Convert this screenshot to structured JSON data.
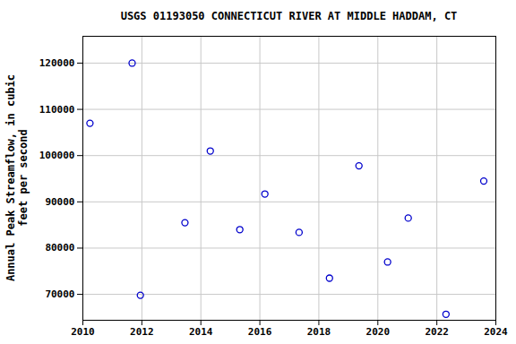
{
  "chart_data": {
    "type": "scatter",
    "title": "USGS 01193050 CONNECTICUT RIVER AT MIDDLE HADDAM, CT",
    "y_label": "Annual Peak Streamflow, in cubic feet per second",
    "x": [
      2010.24,
      2011.67,
      2011.95,
      2013.46,
      2014.32,
      2015.32,
      2016.17,
      2017.33,
      2018.36,
      2019.36,
      2020.33,
      2021.03,
      2022.31,
      2023.59
    ],
    "values": [
      107000,
      120000,
      69800,
      85500,
      101000,
      84000,
      91700,
      83400,
      73500,
      97800,
      77000,
      86500,
      65700,
      94500
    ],
    "color": "#0000cc",
    "marker": "circle",
    "xlim": [
      2010,
      2024
    ],
    "xticks": [
      2010,
      2012,
      2014,
      2016,
      2018,
      2020,
      2022,
      2024
    ],
    "ylim": [
      64400,
      125800
    ],
    "yticks": [
      70000,
      80000,
      90000,
      100000,
      110000,
      120000
    ],
    "grid": true
  }
}
